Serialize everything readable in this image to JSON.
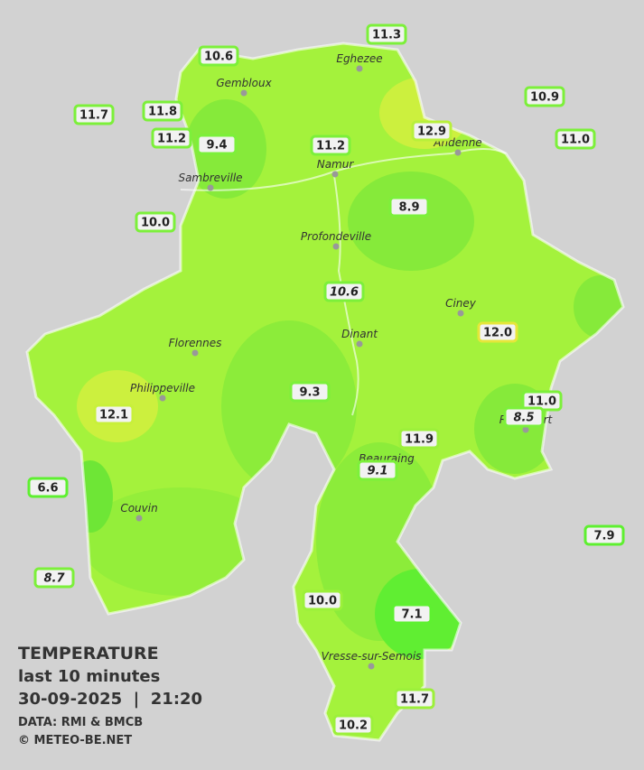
{
  "title": "TEMPERATURE",
  "subtitle": "last 10 minutes",
  "timestamp": "30-09-2025  |  21:20",
  "source": "DATA: RMI & BMCB",
  "credit": "© METEO-BE.NET",
  "towns": [
    "Eghezee",
    "Gembloux",
    "Andenne",
    "Namur",
    "Sambreville",
    "Profondeville",
    "Ciney",
    "Dinant",
    "Florennes",
    "Philippeville",
    "Beauraing",
    "Rochefort",
    "Couvin",
    "Vresse-sur-Semois"
  ],
  "stations": [
    {
      "label": "11.3",
      "border": "#7cf03a"
    },
    {
      "label": "10.6",
      "border": "#7cf03a"
    },
    {
      "label": "10.9",
      "border": "#7cf03a"
    },
    {
      "label": "11.7",
      "border": "#7cf03a"
    },
    {
      "label": "11.8",
      "border": "#7cf03a"
    },
    {
      "label": "12.9",
      "border": "#b8f03a"
    },
    {
      "label": "11.2",
      "border": "#7cf03a"
    },
    {
      "label": "9.4",
      "border": "#7cf03a"
    },
    {
      "label": "11.2",
      "border": "#7cf03a"
    },
    {
      "label": "11.0",
      "border": "#7cf03a"
    },
    {
      "label": "10.0",
      "border": "#7cf03a"
    },
    {
      "label": "8.9",
      "border": "#7cf03a"
    },
    {
      "label": "10.6",
      "border": "#7cf03a",
      "italic": true
    },
    {
      "label": "12.0",
      "border": "#e6e63a"
    },
    {
      "label": "11.0",
      "border": "#7cf03a"
    },
    {
      "label": "8.5",
      "border": "#7cf03a",
      "italic": true
    },
    {
      "label": "9.3",
      "border": "#7cf03a"
    },
    {
      "label": "12.1",
      "border": "#c8f03a"
    },
    {
      "label": "11.9",
      "border": "#9cf03a"
    },
    {
      "label": "9.1",
      "border": "#7cf03a",
      "italic": true
    },
    {
      "label": "6.6",
      "border": "#5ef030"
    },
    {
      "label": "7.9",
      "border": "#5ef030"
    },
    {
      "label": "8.7",
      "border": "#7cf03a",
      "italic": true
    },
    {
      "label": "10.0",
      "border": "#9cf03a"
    },
    {
      "label": "7.1",
      "border": "#5ef030"
    },
    {
      "label": "11.7",
      "border": "#9cf03a"
    },
    {
      "label": "10.2",
      "border": "#9cf03a"
    }
  ]
}
